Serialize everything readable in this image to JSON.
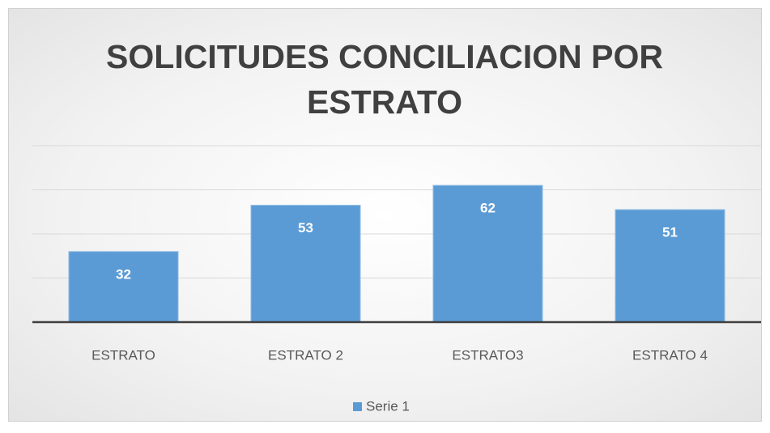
{
  "chart_data": {
    "type": "bar",
    "title": "SOLICITUDES CONCILIACION POR ESTRATO",
    "categories": [
      "ESTRATO",
      "ESTRATO 2",
      "ESTRATO3",
      "ESTRATO 4"
    ],
    "series": [
      {
        "name": "Serie 1",
        "color": "#5b9bd5",
        "values": [
          32,
          53,
          62,
          51
        ]
      }
    ],
    "ylim": [
      0,
      80
    ],
    "yticks": [
      0,
      20,
      40,
      60,
      80
    ],
    "grid": true,
    "legend": "bottom"
  }
}
